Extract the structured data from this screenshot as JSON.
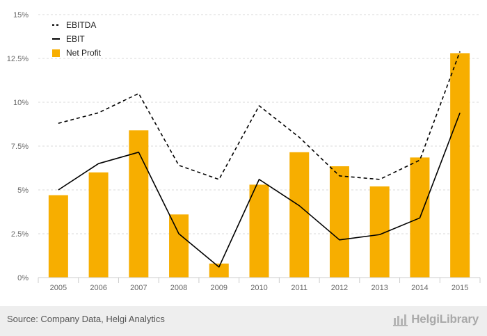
{
  "chart_data": {
    "type": "bar",
    "title": "",
    "xlabel": "",
    "ylabel": "",
    "categories": [
      "2005",
      "2006",
      "2007",
      "2008",
      "2009",
      "2010",
      "2011",
      "2012",
      "2013",
      "2014",
      "2015"
    ],
    "ylim": [
      0,
      15
    ],
    "y_ticks": [
      0,
      2.5,
      5,
      7.5,
      10,
      12.5,
      15
    ],
    "y_tick_labels": [
      "0%",
      "2.5%",
      "5%",
      "7.5%",
      "10%",
      "12.5%",
      "15%"
    ],
    "grid": "horizontal dashed",
    "legend_position": "top-left",
    "series": [
      {
        "name": "EBITDA",
        "kind": "line",
        "style": "dashed",
        "color": "#000000",
        "values": [
          8.8,
          9.4,
          10.5,
          6.4,
          5.6,
          9.8,
          8.0,
          5.8,
          5.6,
          6.7,
          12.9
        ]
      },
      {
        "name": "EBIT",
        "kind": "line",
        "style": "solid",
        "color": "#000000",
        "values": [
          5.0,
          6.5,
          7.15,
          2.5,
          0.6,
          5.6,
          4.1,
          2.15,
          2.45,
          3.4,
          9.4
        ]
      },
      {
        "name": "Net Profit",
        "kind": "bar",
        "color": "#F7AE00",
        "values": [
          4.7,
          6.0,
          8.4,
          3.6,
          0.8,
          5.3,
          7.15,
          6.35,
          5.2,
          6.85,
          12.8
        ]
      }
    ]
  },
  "footer": {
    "source": "Source: Company Data, Helgi Analytics",
    "brand": "HelgiLibrary"
  }
}
